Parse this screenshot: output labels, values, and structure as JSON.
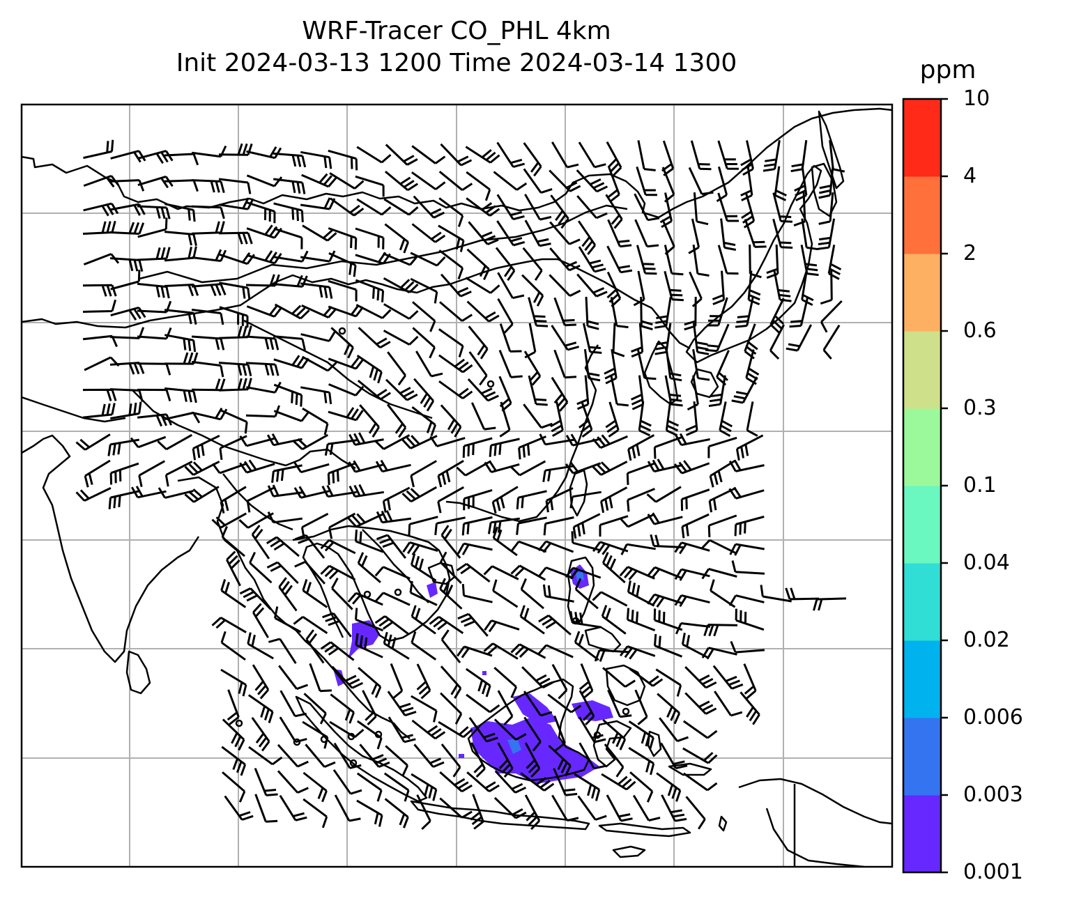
{
  "title": {
    "line1": "WRF-Tracer CO_PHL 4km",
    "line2": "Init 2024-03-13 1200 Time 2024-03-14 1300"
  },
  "colorbar": {
    "unit": "ppm",
    "levels": [
      "0.001",
      "0.003",
      "0.006",
      "0.02",
      "0.04",
      "0.1",
      "0.3",
      "0.6",
      "2",
      "4",
      "10"
    ],
    "colors": [
      "#6628ff",
      "#3574f0",
      "#00b2ee",
      "#30ded6",
      "#6af7c0",
      "#9cf99b",
      "#cee08a",
      "#fdb061",
      "#ff703b",
      "#ff2a18"
    ]
  },
  "map": {
    "background": "#ffffff",
    "coastline_color": "#000000",
    "gridline_color": "#b0b0b0",
    "barb_color": "#000000",
    "plume_color": "#6628ff",
    "plume_core_color": "#3574f0"
  }
}
